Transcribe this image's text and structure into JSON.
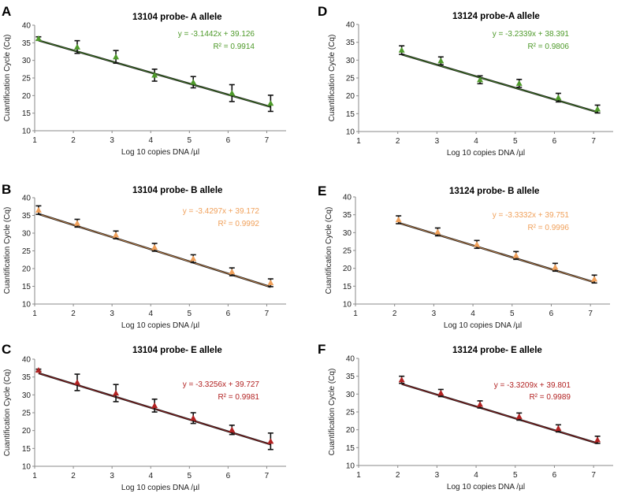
{
  "chart_data": [
    {
      "id": "A",
      "panel_letter": "A",
      "type": "scatter",
      "title": "13104 probe- A allele",
      "xlabel": "Log 10  copies DNA /µl",
      "ylabel": "Cuantification Cycle (Cq)",
      "xlim": [
        1,
        7.5
      ],
      "ylim": [
        10,
        40
      ],
      "xticks": [
        1,
        2,
        3,
        4,
        5,
        6,
        7
      ],
      "yticks": [
        10,
        15,
        20,
        25,
        30,
        35,
        40
      ],
      "x": [
        1.1,
        2.1,
        3.1,
        4.1,
        5.1,
        6.1,
        7.1
      ],
      "y": [
        36.2,
        33.8,
        31.0,
        25.8,
        23.8,
        20.7,
        17.8
      ],
      "yerr": [
        0.5,
        1.8,
        1.8,
        1.7,
        1.6,
        2.4,
        2.3
      ],
      "fit": {
        "slope": -3.1442,
        "intercept": 39.126
      },
      "equation": "y = -3.1442x + 39.126",
      "r2_label": "R² = 0.9914",
      "color": "#4e9a2a"
    },
    {
      "id": "B",
      "panel_letter": "B",
      "type": "scatter",
      "title": "13104 probe- B allele",
      "xlabel": "Log 10  copies DNA /µl",
      "ylabel": "Cuantification Cycle (Cq)",
      "xlim": [
        1,
        7.5
      ],
      "ylim": [
        10,
        40
      ],
      "xticks": [
        1,
        2,
        3,
        4,
        5,
        6,
        7
      ],
      "yticks": [
        10,
        15,
        20,
        25,
        30,
        35,
        40
      ],
      "x": [
        1.1,
        2.1,
        3.1,
        4.1,
        5.1,
        6.1,
        7.1
      ],
      "y": [
        36.5,
        32.8,
        29.5,
        26.0,
        22.8,
        19.1,
        16.0
      ],
      "yerr": [
        1.2,
        1.1,
        1.1,
        1.1,
        1.1,
        1.1,
        1.1
      ],
      "fit": {
        "slope": -3.4297,
        "intercept": 39.172
      },
      "equation": "y = -3.4297x + 39.172",
      "r2_label": "R² = 0.9992",
      "color": "#f0a05a"
    },
    {
      "id": "C",
      "panel_letter": "C",
      "type": "scatter",
      "title": "13104 probe- E allele",
      "xlabel": "Log 10  copies DNA /µl",
      "ylabel": "Cuantification Cycle (Cq)",
      "xlim": [
        1,
        7.5
      ],
      "ylim": [
        10,
        40
      ],
      "xticks": [
        1,
        2,
        3,
        4,
        5,
        6,
        7
      ],
      "yticks": [
        10,
        15,
        20,
        25,
        30,
        35,
        40
      ],
      "x": [
        1.1,
        2.1,
        3.1,
        4.1,
        5.1,
        6.1,
        7.1
      ],
      "y": [
        36.9,
        33.5,
        30.5,
        27.0,
        23.5,
        20.2,
        17.0
      ],
      "yerr": [
        0.3,
        2.3,
        2.4,
        1.8,
        1.5,
        1.3,
        2.3
      ],
      "fit": {
        "slope": -3.3256,
        "intercept": 39.727
      },
      "equation": "y = -3.3256x + 39.727",
      "r2_label": "R² = 0.9981",
      "color": "#b22222"
    },
    {
      "id": "D",
      "panel_letter": "D",
      "type": "scatter",
      "title": "13124 probe-A allele",
      "xlabel": "Log 10  copies DNA /µl",
      "ylabel": "Cuantification Cycle (Cq)",
      "xlim": [
        1,
        7.5
      ],
      "ylim": [
        10,
        40
      ],
      "xticks": [
        1,
        2,
        3,
        4,
        5,
        6,
        7
      ],
      "yticks": [
        10,
        15,
        20,
        25,
        30,
        35,
        40
      ],
      "x": [
        2.1,
        3.1,
        4.1,
        5.1,
        6.1,
        7.1
      ],
      "y": [
        32.8,
        29.8,
        24.5,
        23.5,
        19.5,
        16.3
      ],
      "yerr": [
        1.2,
        1.1,
        1.1,
        1.1,
        1.2,
        1.1
      ],
      "fit": {
        "slope": -3.2339,
        "intercept": 38.391
      },
      "equation": "y = -3.2339x + 38.391",
      "r2_label": "R² = 0.9806",
      "color": "#4e9a2a"
    },
    {
      "id": "E",
      "panel_letter": "E",
      "type": "scatter",
      "title": "13124 probe- B allele",
      "xlabel": "Log 10  copies DNA /µl",
      "ylabel": "Cuantification Cycle (Cq)",
      "xlim": [
        1,
        7.5
      ],
      "ylim": [
        10,
        40
      ],
      "xticks": [
        1,
        2,
        3,
        4,
        5,
        6,
        7
      ],
      "yticks": [
        10,
        15,
        20,
        25,
        30,
        35,
        40
      ],
      "x": [
        2.1,
        3.1,
        4.1,
        5.1,
        6.1,
        7.1
      ],
      "y": [
        33.6,
        30.2,
        26.7,
        23.6,
        20.3,
        17.0
      ],
      "yerr": [
        1.1,
        1.1,
        1.1,
        1.1,
        1.1,
        1.1
      ],
      "fit": {
        "slope": -3.3332,
        "intercept": 39.751
      },
      "equation": "y = -3.3332x + 39.751",
      "r2_label": "R² = 0.9996",
      "color": "#f0a05a"
    },
    {
      "id": "F",
      "panel_letter": "F",
      "type": "scatter",
      "title": "13124 probe- E allele",
      "xlabel": "Log 10  copies DNA /µl",
      "ylabel": "Cuantification Cycle (Cq)",
      "xlim": [
        1,
        7.5
      ],
      "ylim": [
        10,
        40
      ],
      "xticks": [
        1,
        2,
        3,
        4,
        5,
        6,
        7
      ],
      "yticks": [
        10,
        15,
        20,
        25,
        30,
        35,
        40
      ],
      "x": [
        2.1,
        3.1,
        4.1,
        5.1,
        6.1,
        7.1
      ],
      "y": [
        34.0,
        30.3,
        27.1,
        23.7,
        20.4,
        17.2
      ],
      "yerr": [
        1.0,
        1.0,
        1.0,
        1.0,
        1.0,
        1.0
      ],
      "fit": {
        "slope": -3.3209,
        "intercept": 39.801
      },
      "equation": "y = -3.3209x + 39.801",
      "r2_label": "R² = 0.9989",
      "color": "#b22222"
    }
  ]
}
